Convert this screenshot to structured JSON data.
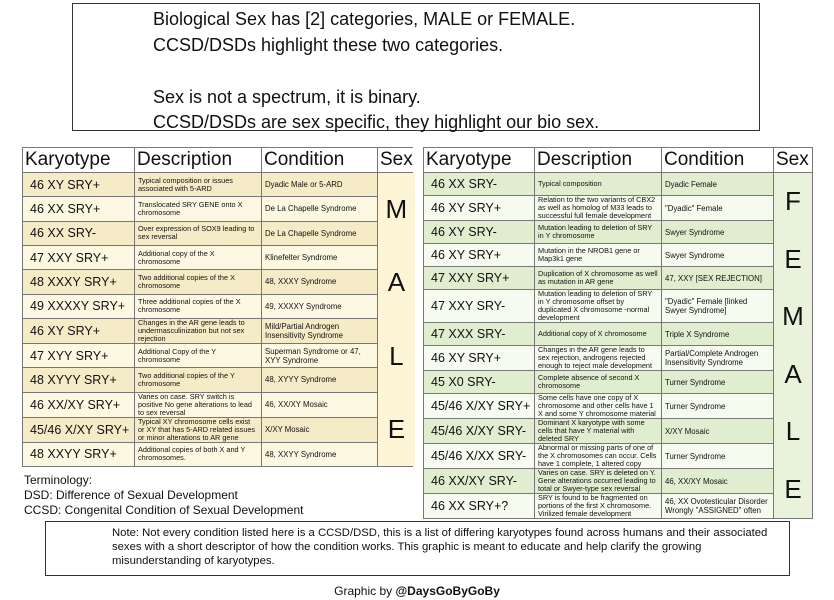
{
  "header": {
    "lines": [
      "Biological Sex has [2] categories, MALE or FEMALE.",
      "CCSD/DSDs highlight these two categories.",
      "Sex is not a spectrum, it is binary.",
      "CCSD/DSDs are sex specific, they highlight our bio sex."
    ]
  },
  "tables": [
    {
      "headers": [
        "Karyotype",
        "Description",
        "Condition",
        "Sex"
      ],
      "rows": [
        [
          "46 XY SRY+",
          "Typical composition or issues associated with 5-ARD",
          "Dyadic Male or 5-ARD"
        ],
        [
          "46 XX SRY+",
          "Translocated SRY GENE onto X chromosome",
          "De La Chapelle Syndrome"
        ],
        [
          "46 XX SRY-",
          "Over expression of SOX9 leading to sex reversal",
          "De La Chapelle Syndrome"
        ],
        [
          "47 XXY SRY+",
          "Additional copy of the X chromosome",
          "Klinefelter Syndrome"
        ],
        [
          "48 XXXY SRY+",
          "Two additional copies of the X chromosome",
          "48, XXXY Syndrome"
        ],
        [
          "49 XXXXY SRY+",
          "Three additional copies of the X chromosome",
          "49, XXXXY Syndrome"
        ],
        [
          "46 XY SRY+",
          "Changes in the AR gene leads to undermasculinization but not sex rejection",
          "Mild/Partial Androgen Insensitivity Syndrome"
        ],
        [
          "47 XYY SRY+",
          "Additional Copy of the Y chromosome",
          "Superman Syndrome or 47, XYY Syndrome"
        ],
        [
          "48 XYYY SRY+",
          "Two additional copies of the Y chromosome",
          "48, XYYY Syndrome"
        ],
        [
          "46 XX/XY SRY+",
          "Varies on case. SRY switch is positive No gene alterations to lead to sex reversal",
          "46, XX/XY Mosaic"
        ],
        [
          "45/46 X/XY SRY+",
          "Typical XY chromosome cells exist or XY that has 5-ARD related issues or minor alterations to AR gene",
          "X/XY Mosaic"
        ],
        [
          "48 XXYY SRY+",
          "Additional copies of both X and Y chromosomes.",
          "48, XXYY Syndrome"
        ]
      ],
      "sex_letters": [
        "M",
        "A",
        "L",
        "E"
      ]
    },
    {
      "headers": [
        "Karyotype",
        "Description",
        "Condition",
        "Sex"
      ],
      "rows": [
        [
          "46 XX SRY-",
          "Typical composition",
          "Dyadic Female"
        ],
        [
          "46 XY SRY+",
          "Relation to the two variants of CBX2 as well as homolog of M33 leads to successful full female development",
          "\"Dyadic\" Female"
        ],
        [
          "46 XY SRY-",
          "Mutation leading to deletion of SRY in Y chromosome",
          "Swyer Syndrome"
        ],
        [
          "46 XY SRY+",
          "Mutation in the NROB1 gene or Map3k1 gene",
          "Swyer Syndrome"
        ],
        [
          "47 XXY SRY+",
          "Duplication of X chromosome as well as mutation in AR gene",
          "47, XXY [SEX REJECTION]"
        ],
        [
          "47 XXY SRY-",
          "Mutation leading to deletion of SRY in Y chromosome offset by duplicated X chromosome -normal development",
          "\"Dyadic\" Female [linked Swyer Syndrome]"
        ],
        [
          "47 XXX SRY-",
          "Additional copy of X chromosome",
          "Triple X Syndrome"
        ],
        [
          "46 XY SRY+",
          "Changes in the AR gene leads to sex rejection, androgens rejected enough to reject male development",
          "Partial/Complete Androgen Insensitivity Syndrome"
        ],
        [
          "45 X0 SRY-",
          "Complete absence of second X chromosome",
          "Turner Syndrome"
        ],
        [
          "45/46 X/XY SRY+",
          "Some cells have one copy of X chromosome and other cells have 1 X and some Y chromosome material",
          "Turner Syndrome"
        ],
        [
          "45/46 X/XY SRY-",
          "Dominant X karyotype with some cells that have Y material with deleted SRY",
          "X/XY Mosaic"
        ],
        [
          "45/46 X/XX SRY-",
          "Abnormal or missing parts of one of the X chromosomes can occur. Cells have 1 complete, 1 altered copy",
          "Turner Syndrome"
        ],
        [
          "46 XX/XY SRY-",
          "Varies on case. SRY is deleted on Y. Gene alterations occurred leading to total or Swyer-type sex reversal",
          "46, XX/XY Mosaic"
        ],
        [
          "46 XX SRY+?",
          "SRY is found to be fragmented on portions of the first X chromosome. Virilized female development",
          "46, XX Ovotesticular Disorder Wrongly \"ASSIGNED\" often"
        ]
      ],
      "sex_letters": [
        "F",
        "E",
        "M",
        "A",
        "L",
        "E"
      ]
    }
  ],
  "terminology": {
    "title": "Terminology:",
    "lines": [
      "DSD: Difference of Sexual Development",
      "CCSD: Congenital Condition of Sexual Development"
    ]
  },
  "note": "Note: Not every condition listed here is a CCSD/DSD, this is a list of differing karyotypes found across humans and their associated sexes with a short descriptor of how the condition works. This graphic is meant to educate and help clarify the growing misunderstanding of karyotypes.",
  "credit": {
    "prefix": "Graphic by",
    "handle": "@DaysGoByGoBy"
  }
}
